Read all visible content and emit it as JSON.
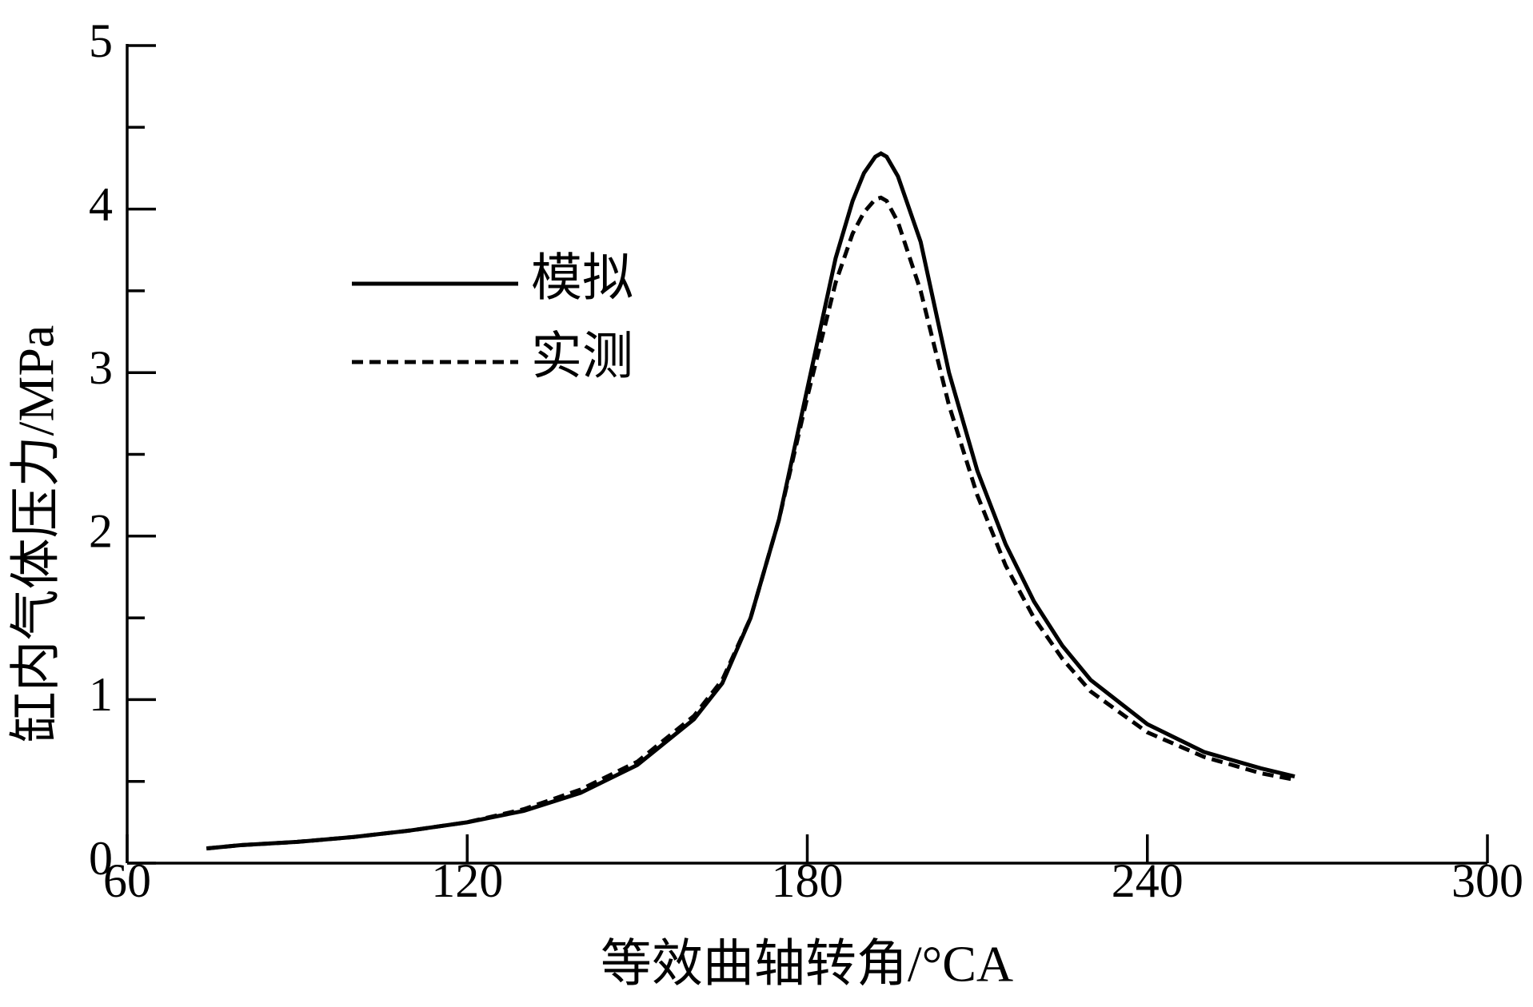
{
  "chart_data": {
    "type": "line",
    "xlabel": "等效曲轴转角/°CA",
    "ylabel": "缸内气体压力/MPa",
    "x": [
      74,
      80,
      90,
      100,
      110,
      120,
      130,
      140,
      150,
      160,
      165,
      170,
      175,
      180,
      185,
      188,
      190,
      192,
      193,
      194,
      196,
      200,
      205,
      210,
      215,
      220,
      225,
      230,
      240,
      250,
      260,
      266
    ],
    "series": [
      {
        "name": "模拟",
        "color": "#000000",
        "dash": "solid",
        "values": [
          0.09,
          0.11,
          0.13,
          0.16,
          0.2,
          0.25,
          0.32,
          0.43,
          0.6,
          0.88,
          1.1,
          1.5,
          2.1,
          2.9,
          3.7,
          4.05,
          4.22,
          4.32,
          4.34,
          4.32,
          4.2,
          3.8,
          3.0,
          2.4,
          1.95,
          1.6,
          1.33,
          1.12,
          0.85,
          0.68,
          0.58,
          0.53
        ]
      },
      {
        "name": "实测",
        "color": "#000000",
        "dash": "dashed",
        "values": [
          0.09,
          0.11,
          0.13,
          0.16,
          0.2,
          0.25,
          0.33,
          0.45,
          0.62,
          0.9,
          1.12,
          1.5,
          2.1,
          2.85,
          3.55,
          3.85,
          3.98,
          4.06,
          4.07,
          4.05,
          3.92,
          3.5,
          2.8,
          2.25,
          1.82,
          1.5,
          1.25,
          1.05,
          0.8,
          0.65,
          0.55,
          0.51
        ]
      }
    ],
    "xlim": [
      60,
      300
    ],
    "xticks": [
      60,
      120,
      180,
      240,
      300
    ],
    "ylim": [
      0,
      5
    ],
    "yticks": [
      0,
      1,
      2,
      3,
      4,
      5
    ],
    "grid": false,
    "legend": "upper left"
  }
}
